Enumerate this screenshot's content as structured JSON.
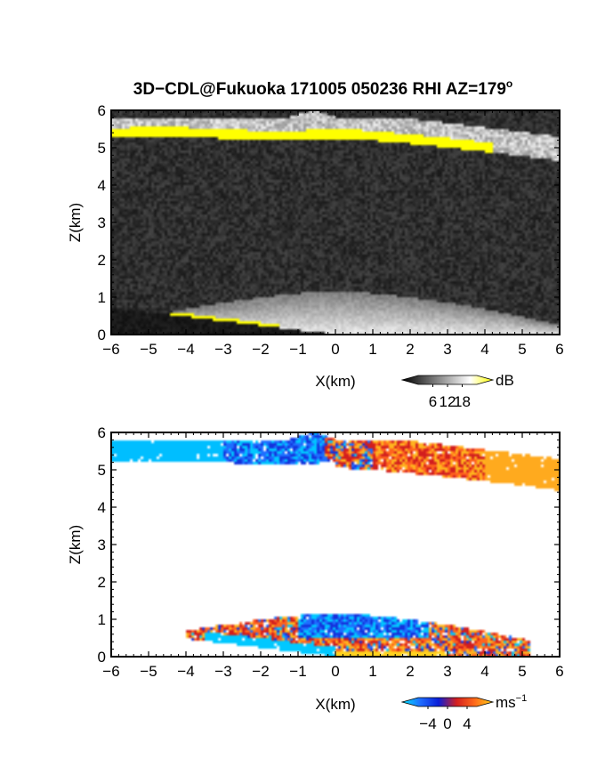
{
  "chart_data": [
    {
      "type": "heatmap",
      "title": "3D−CDL@Fukuoka 171005 050236 RHI AZ=179",
      "title_superscript": "o",
      "xlabel": "X(km)",
      "ylabel": "Z(km)",
      "xlim": [
        -6,
        6
      ],
      "ylim": [
        0,
        6
      ],
      "x_ticks": [
        "−6",
        "−5",
        "−4",
        "−3",
        "−2",
        "−1",
        "0",
        "1",
        "2",
        "3",
        "4",
        "5",
        "6"
      ],
      "y_ticks": [
        "0",
        "1",
        "2",
        "3",
        "4",
        "5",
        "6"
      ],
      "colorbar": {
        "unit": "dB",
        "ticks": [
          "6",
          "12",
          "18"
        ],
        "colors": [
          "#000000",
          "#555555",
          "#aaaaaa",
          "#ffffff",
          "#ffff00"
        ]
      },
      "features": [
        {
          "kind": "cloud-layer",
          "x": [
            -6,
            6
          ],
          "z": [
            4.7,
            6.0
          ],
          "value_db": "high (saturated, yellow at base)"
        },
        {
          "kind": "boundary-layer-fan",
          "x": [
            -6,
            6
          ],
          "z": [
            0,
            1.3
          ],
          "value_db": "medium"
        },
        {
          "kind": "noise",
          "x": [
            -6,
            6
          ],
          "z": [
            1.3,
            4.7
          ],
          "value_db": "low"
        }
      ]
    },
    {
      "type": "heatmap",
      "xlabel": "X(km)",
      "ylabel": "Z(km)",
      "xlim": [
        -6,
        6
      ],
      "ylim": [
        0,
        6
      ],
      "x_ticks": [
        "−6",
        "−5",
        "−4",
        "−3",
        "−2",
        "−1",
        "0",
        "1",
        "2",
        "3",
        "4",
        "5",
        "6"
      ],
      "y_ticks": [
        "0",
        "1",
        "2",
        "3",
        "4",
        "5",
        "6"
      ],
      "colorbar": {
        "unit": "ms",
        "unit_superscript": "−1",
        "ticks": [
          "−4",
          "0",
          "4"
        ],
        "colors": [
          "#00e5ff",
          "#1f6dff",
          "#0a1ed8",
          "#d41f1f",
          "#ff6a1a",
          "#ffd21a"
        ]
      },
      "features": [
        {
          "kind": "cloud-layer-approaching",
          "x": [
            -6,
            0
          ],
          "z": [
            5.2,
            5.8
          ],
          "velocity": "negative"
        },
        {
          "kind": "cloud-layer-receding",
          "x": [
            0,
            6
          ],
          "z": [
            4.6,
            5.5
          ],
          "velocity": "positive"
        },
        {
          "kind": "boundary-layer",
          "x": [
            -5,
            5
          ],
          "z": [
            0,
            1.2
          ],
          "velocity": "mixed"
        }
      ]
    }
  ]
}
